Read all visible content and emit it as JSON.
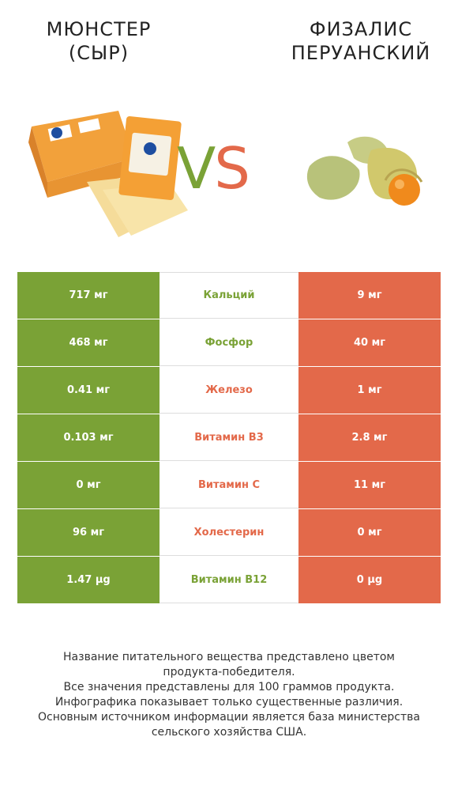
{
  "titles": {
    "left": {
      "line1": "Мюнстер",
      "line2": "(сыр)"
    },
    "right": {
      "line1": "Физалис",
      "line2": "перуанский"
    }
  },
  "vs": {
    "v": "V",
    "s": "S"
  },
  "colors": {
    "winner_left": "#7aa236",
    "winner_right": "#e3694a"
  },
  "rows": [
    {
      "left": "717 мг",
      "name": "Кальций",
      "right": "9 мг",
      "winner": "left"
    },
    {
      "left": "468 мг",
      "name": "Фосфор",
      "right": "40 мг",
      "winner": "left"
    },
    {
      "left": "0.41 мг",
      "name": "Железо",
      "right": "1 мг",
      "winner": "right"
    },
    {
      "left": "0.103 мг",
      "name": "Витамин B3",
      "right": "2.8 мг",
      "winner": "right"
    },
    {
      "left": "0 мг",
      "name": "Витамин C",
      "right": "11 мг",
      "winner": "right"
    },
    {
      "left": "96 мг",
      "name": "Холестерин",
      "right": "0 мг",
      "winner": "right"
    },
    {
      "left": "1.47 µg",
      "name": "Витамин B12",
      "right": "0 µg",
      "winner": "left"
    }
  ],
  "footer": [
    "Название питательного вещества представлено цветом",
    "продукта-победителя.",
    "Все значения представлены для 100 граммов продукта.",
    "Инфографика показывает только существенные различия.",
    "Основным источником информации является база министерства",
    "сельского хозяйства США."
  ]
}
